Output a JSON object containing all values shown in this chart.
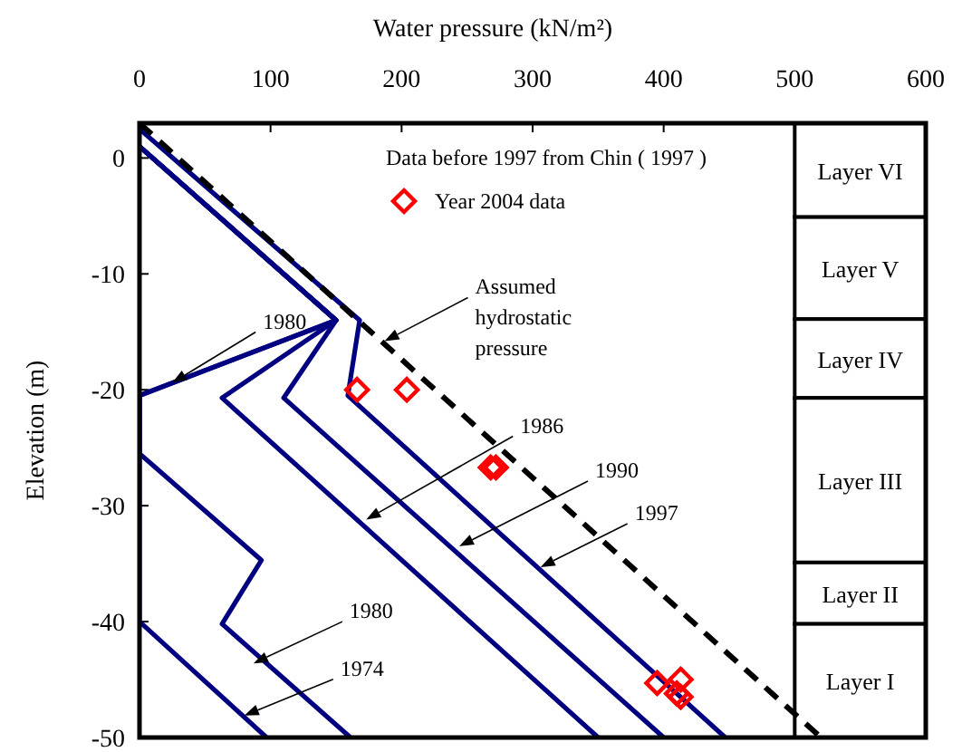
{
  "chart_data": {
    "type": "line",
    "xlabel": "Water pressure (kN/m²)",
    "ylabel": "Elevation  (m)",
    "xlim": [
      0,
      600
    ],
    "xticks": [
      0,
      100,
      200,
      300,
      400,
      500,
      600
    ],
    "ylim": [
      -50,
      3
    ],
    "yticks": [
      0,
      -10,
      -20,
      -30,
      -40,
      -50
    ],
    "grid": false,
    "legend": "top",
    "marker": "none",
    "series": [
      {
        "color": "#000080",
        "x": [
          0,
          150,
          0,
          0,
          97
        ],
        "values": [
          1,
          -14,
          -20.5,
          -40,
          -50
        ]
      },
      {
        "color": "#000080",
        "x": [
          0,
          150,
          0,
          0,
          93,
          63,
          161
        ],
        "values": [
          1,
          -14,
          -20.5,
          -25.5,
          -34.7,
          -40.2,
          -50
        ]
      },
      {
        "color": "#000080",
        "x": [
          0,
          150,
          63,
          350
        ],
        "values": [
          1,
          -14,
          -20.7,
          -50
        ]
      },
      {
        "color": "#000080",
        "x": [
          0,
          150,
          110,
          400
        ],
        "values": [
          1,
          -14,
          -20.7,
          -50
        ]
      },
      {
        "color": "#000080",
        "x": [
          0,
          168,
          159,
          447
        ],
        "values": [
          2.5,
          -14,
          -20.5,
          -50
        ]
      },
      {
        "color": "#000000",
        "line_style": "dashed",
        "x": [
          0,
          520
        ],
        "values": [
          3,
          -50
        ]
      },
      {
        "type": "scatter",
        "name": "Year 2004 data",
        "color": "#ff0000",
        "marker": "diamond",
        "x": [
          166,
          204,
          268,
          272,
          395,
          413,
          413,
          410
        ],
        "values": [
          -20,
          -20,
          -26.7,
          -26.7,
          -45.3,
          -45,
          -46.5,
          -46.2
        ]
      }
    ],
    "bands": [
      {
        "axis": "y",
        "from": 3,
        "to": -5.1,
        "label": "Layer VI",
        "color": "#ffffff"
      },
      {
        "axis": "y",
        "from": -5.1,
        "to": -13.9,
        "label": "Layer V",
        "color": "#ffffff"
      },
      {
        "axis": "y",
        "from": -13.9,
        "to": -20.7,
        "label": "Layer IV",
        "color": "#ffffff"
      },
      {
        "axis": "y",
        "from": -20.7,
        "to": -34.9,
        "label": "Layer III",
        "color": "#ffffff"
      },
      {
        "axis": "y",
        "from": -34.9,
        "to": -40.2,
        "label": "Layer II",
        "color": "#ffffff"
      },
      {
        "axis": "y",
        "from": -40.2,
        "to": -50,
        "label": "Layer I",
        "color": "#ffffff"
      }
    ],
    "annotations": [
      "Data before 1997  from Chin ( 1997 )",
      {
        "text": "1980",
        "x": 25,
        "y": -19.4
      },
      {
        "text": "Assumed\nhydrostatic\npressure",
        "x": 187,
        "y": -15.8
      },
      {
        "text": "1986",
        "x": 173,
        "y": -31.2
      },
      {
        "text": "1990",
        "x": 244,
        "y": -33.5
      },
      {
        "text": "1997",
        "x": 306,
        "y": -35.3
      },
      {
        "text": "1980",
        "x": 87,
        "y": -43.6
      },
      {
        "text": "1974",
        "x": 80,
        "y": -48.1
      }
    ]
  }
}
